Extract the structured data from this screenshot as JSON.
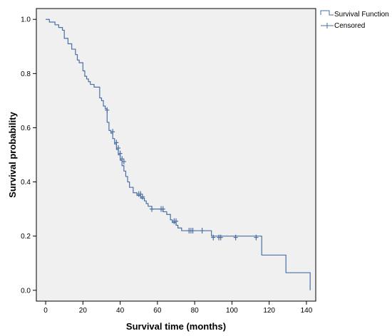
{
  "chart_data": {
    "type": "line",
    "title": "",
    "xlabel": "Survival time (months)",
    "ylabel": "Survival probability",
    "xlim": [
      -5,
      145
    ],
    "ylim": [
      -0.04,
      1.04
    ],
    "xticks": [
      0,
      20,
      40,
      60,
      80,
      100,
      120,
      140
    ],
    "yticks": [
      0.0,
      0.2,
      0.4,
      0.6,
      0.8,
      1.0
    ],
    "ytick_labels": [
      "0.0",
      "0.2",
      "0.4",
      "0.6",
      "0.8",
      "1.0"
    ],
    "grid": false,
    "background": "#f0f0f0",
    "line_color": "#4a6fa5",
    "legend_position": "top-right",
    "series": [
      {
        "name": "Survival Function",
        "kind": "step",
        "x": [
          0,
          2,
          5,
          7,
          9,
          10,
          12,
          14,
          16,
          17,
          18,
          20,
          21,
          22,
          23,
          24,
          26,
          29,
          30,
          31,
          32,
          33,
          34,
          35,
          36,
          37,
          38,
          39,
          40,
          41,
          42,
          43,
          44,
          45,
          47,
          49,
          51,
          53,
          54,
          55,
          57,
          60,
          63,
          65,
          67,
          68,
          70,
          71,
          72,
          73,
          75,
          89,
          93,
          102,
          116,
          129,
          142
        ],
        "y": [
          1.0,
          0.99,
          0.98,
          0.97,
          0.96,
          0.93,
          0.91,
          0.89,
          0.87,
          0.85,
          0.84,
          0.81,
          0.79,
          0.78,
          0.77,
          0.76,
          0.75,
          0.71,
          0.7,
          0.68,
          0.67,
          0.62,
          0.59,
          0.58,
          0.56,
          0.54,
          0.52,
          0.5,
          0.48,
          0.46,
          0.44,
          0.42,
          0.4,
          0.38,
          0.36,
          0.35,
          0.34,
          0.33,
          0.32,
          0.31,
          0.3,
          0.3,
          0.29,
          0.28,
          0.26,
          0.25,
          0.24,
          0.23,
          0.23,
          0.22,
          0.22,
          0.2,
          0.2,
          0.2,
          0.13,
          0.065,
          0.0
        ]
      },
      {
        "name": "Censored",
        "kind": "marker",
        "x": [
          33,
          36,
          38,
          39,
          40,
          41,
          42,
          50,
          51,
          52,
          57,
          62,
          63,
          69,
          70,
          77,
          78,
          79,
          84,
          90,
          93,
          94,
          102,
          113
        ],
        "y": [
          0.665,
          0.585,
          0.545,
          0.525,
          0.505,
          0.485,
          0.475,
          0.355,
          0.355,
          0.345,
          0.3,
          0.3,
          0.3,
          0.255,
          0.255,
          0.22,
          0.22,
          0.22,
          0.22,
          0.195,
          0.195,
          0.195,
          0.195,
          0.195
        ]
      }
    ]
  }
}
